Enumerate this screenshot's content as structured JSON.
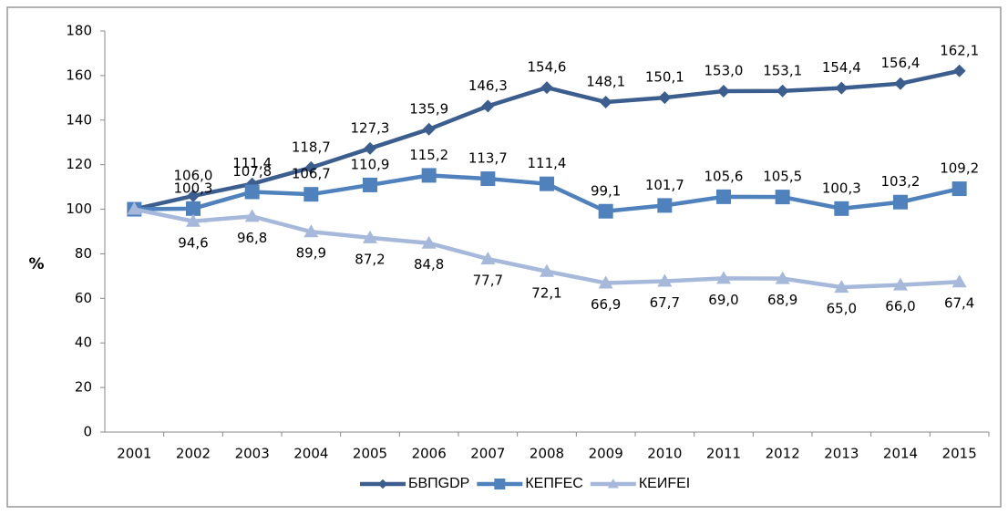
{
  "chart_data": {
    "type": "line",
    "ylabel": "%",
    "categories": [
      "2001",
      "2002",
      "2003",
      "2004",
      "2005",
      "2006",
      "2007",
      "2008",
      "2009",
      "2010",
      "2011",
      "2012",
      "2013",
      "2014",
      "2015"
    ],
    "series": [
      {
        "name": "БВПGDP",
        "color": "#3c5e8e",
        "marker": "diamond",
        "values": [
          100,
          106.0,
          111.4,
          118.7,
          127.3,
          135.9,
          146.3,
          154.6,
          148.1,
          150.1,
          153.0,
          153.1,
          154.4,
          156.4,
          162.1
        ],
        "value_labels": [
          null,
          "106,0",
          "111,4",
          "118,7",
          "127,3",
          "135,9",
          "146,3",
          "154,6",
          "148,1",
          "150,1",
          "153,0",
          "153,1",
          "154,4",
          "156,4",
          "162,1"
        ]
      },
      {
        "name": "КЕПFEC",
        "color": "#4f81bd",
        "marker": "square",
        "values": [
          100,
          100.3,
          107.8,
          106.7,
          110.9,
          115.2,
          113.7,
          111.4,
          99.1,
          101.7,
          105.6,
          105.5,
          100.3,
          103.2,
          109.2
        ],
        "value_labels": [
          null,
          "100,3",
          "107,8",
          "106,7",
          "110,9",
          "115,2",
          "113,7",
          "111,4",
          "99,1",
          "101,7",
          "105,6",
          "105,5",
          "100,3",
          "103,2",
          "109,2"
        ]
      },
      {
        "name": "КЕИFEI",
        "color": "#a7b9da",
        "marker": "triangle",
        "values": [
          100,
          94.6,
          96.8,
          89.9,
          87.2,
          84.8,
          77.7,
          72.1,
          66.9,
          67.7,
          69.0,
          68.9,
          65.0,
          66.0,
          67.4
        ],
        "value_labels": [
          null,
          "94,6",
          "96,8",
          "89,9",
          "87,2",
          "84,8",
          "77,7",
          "72,1",
          "66,9",
          "67,7",
          "69,0",
          "68,9",
          "65,0",
          "66,0",
          "67,4"
        ]
      }
    ],
    "ylim": [
      0,
      180
    ],
    "yticks": [
      0,
      20,
      40,
      60,
      80,
      100,
      120,
      140,
      160,
      180
    ],
    "grid": false,
    "legend": "bottom"
  }
}
